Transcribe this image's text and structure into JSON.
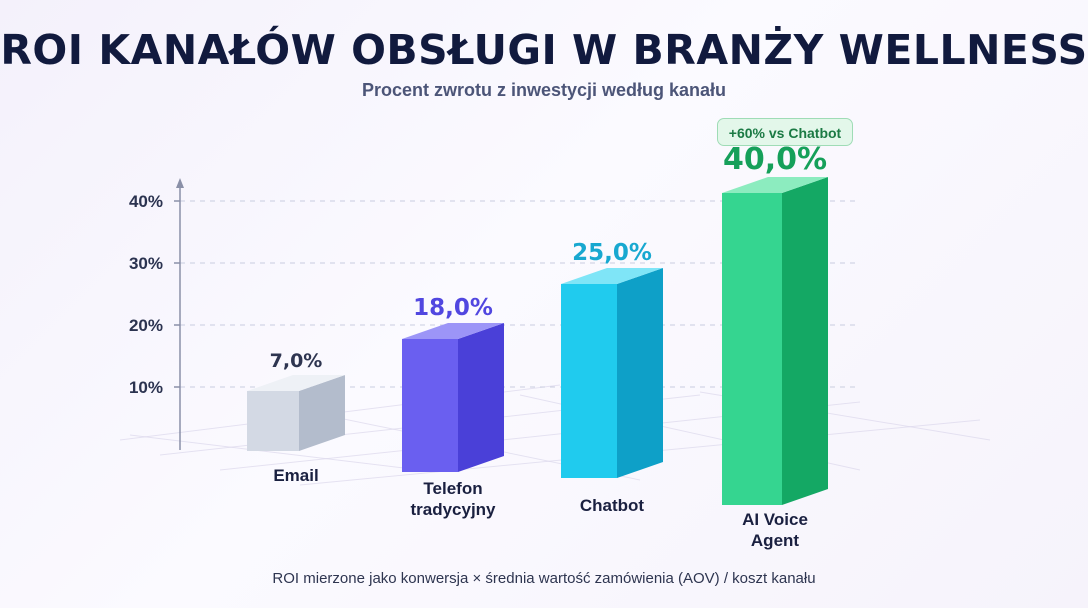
{
  "title": "ROI KANAŁÓW OBSŁUGI W BRANŻY WELLNESS",
  "subtitle": "Procent zwrotu z inwestycji według kanału",
  "footnote": "ROI mierzone jako konwersja × średnia wartość zamówienia (AOV) / koszt kanału",
  "badge": "+60% vs Chatbot",
  "chart_data": {
    "type": "bar",
    "title": "ROI KANAŁÓW OBSŁUGI W BRANŻY WELLNESS",
    "subtitle": "Procent zwrotu z inwestycji według kanału",
    "categories": [
      [
        "Email"
      ],
      [
        "Telefon",
        "tradycyjny"
      ],
      [
        "Chatbot"
      ],
      [
        "AI Voice",
        "Agent"
      ]
    ],
    "values": [
      7.0,
      18.0,
      25.0,
      40.0
    ],
    "value_labels": [
      "7,0%",
      "18,0%",
      "25,0%",
      "40,0%"
    ],
    "yticks": [
      10,
      20,
      30,
      40
    ],
    "ytick_labels": [
      "10%",
      "20%",
      "30%",
      "40%"
    ],
    "ylim": [
      0,
      40
    ],
    "grid": true,
    "style": "3d-bar",
    "colors": [
      {
        "front": "#d3d9e4",
        "side": "#b3bccc",
        "top": "#eef1f6",
        "label": "#2e3550"
      },
      {
        "front": "#6a5ff0",
        "side": "#4a40d8",
        "top": "#9c95f7",
        "label": "#5147e0"
      },
      {
        "front": "#20cbee",
        "side": "#0ea0c8",
        "top": "#7fe5f7",
        "label": "#18a8d0"
      },
      {
        "front": "#35d590",
        "side": "#14a864",
        "top": "#8cecbf",
        "label": "#16a05a"
      }
    ]
  }
}
